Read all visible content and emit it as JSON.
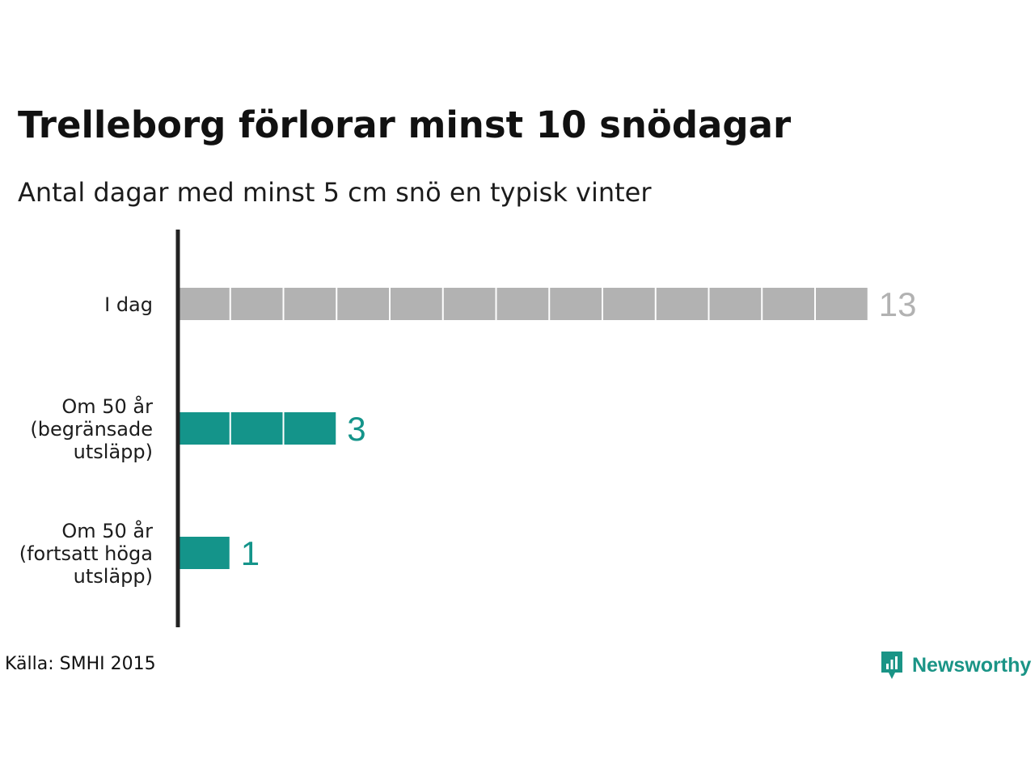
{
  "header": {
    "title": "Trelleborg förlorar minst 10 snödagar",
    "subtitle": "Antal dagar med minst 5 cm snö en typisk vinter"
  },
  "footer": {
    "source": "Källa: SMHI 2015",
    "brand": "Newsworthy"
  },
  "colors": {
    "today": "#b2b2b2",
    "future": "#14948a",
    "axis": "#222222",
    "brand": "#1a9486"
  },
  "chart_data": {
    "type": "bar",
    "orientation": "horizontal",
    "unit_blocks": true,
    "categories": [
      [
        "I dag"
      ],
      [
        "Om 50 år",
        "(begränsade",
        "utsläpp)"
      ],
      [
        "Om 50 år",
        "(fortsatt höga",
        "utsläpp)"
      ]
    ],
    "values": [
      13,
      3,
      1
    ],
    "value_labels": [
      "13",
      "3",
      "1"
    ],
    "bar_colors": [
      "#b2b2b2",
      "#14948a",
      "#14948a"
    ],
    "xlim": [
      0,
      13
    ],
    "grid": false,
    "legend": "none"
  }
}
